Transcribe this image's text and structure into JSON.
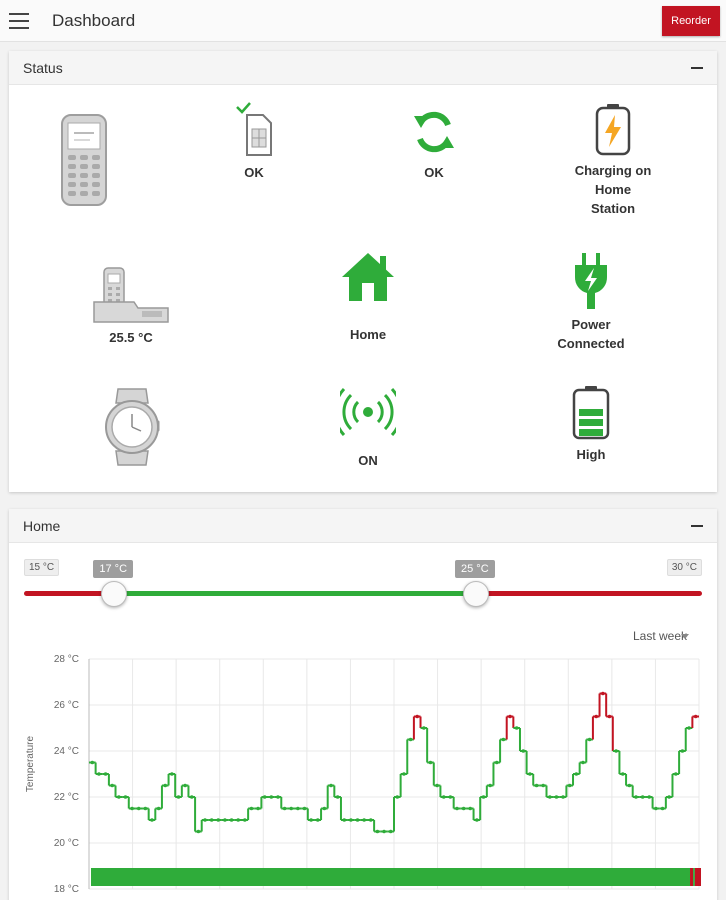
{
  "header": {
    "title": "Dashboard",
    "reorder_label": "Reorder"
  },
  "status": {
    "title": "Status",
    "sim_label": "OK",
    "sync_label": "OK",
    "charging_label": [
      "Charging on",
      "Home",
      "Station"
    ],
    "base_temp": "25.5 °C",
    "location_label": "Home",
    "power_label": [
      "Power",
      "Connected"
    ],
    "signal_label": "ON",
    "battery_label": "High",
    "battery_level": 0.8,
    "colors": {
      "green": "#2fac3a",
      "orange": "#f5a623",
      "gray": "#bdbdbd"
    }
  },
  "home": {
    "title": "Home",
    "slider": {
      "min_label": "15 °C",
      "max_label": "30 °C",
      "low_label": "17 °C",
      "high_label": "25 °C",
      "min": 15,
      "max": 30,
      "low": 17,
      "high": 25
    },
    "period": "Last week"
  },
  "chart_data": {
    "type": "line",
    "ylabel": "Temperature",
    "yticks": [
      "28 °C",
      "26 °C",
      "24 °C",
      "22 °C",
      "20 °C",
      "18 °C"
    ],
    "ylim": [
      18,
      28
    ],
    "grid": true,
    "threshold_high": 25,
    "colors": {
      "in_range": "#2fac3a",
      "above": "#c21422"
    },
    "series": [
      {
        "values": [
          23.5,
          23,
          23,
          22.5,
          22,
          22,
          21.5,
          21.5,
          21.5,
          21,
          21.5,
          22.5,
          23,
          22,
          22.5,
          22,
          20.5,
          21,
          21,
          21,
          21,
          21,
          21,
          21,
          21.5,
          21.5,
          22,
          22,
          22,
          21.5,
          21.5,
          21.5,
          21.5,
          21,
          21,
          21.5,
          22.5,
          22,
          21,
          21,
          21,
          21,
          21,
          20.5,
          20.5,
          20.5,
          22,
          23,
          24.5,
          25.5,
          25,
          23.5,
          22.5,
          22,
          22,
          21.5,
          21.5,
          21.5,
          21,
          22,
          22.5,
          23.5,
          24.5,
          25.5,
          25,
          24,
          23,
          22.5,
          22.5,
          22,
          22,
          22,
          22.5,
          23,
          23.5,
          24.5,
          25.5,
          26.5,
          25.5,
          24,
          23,
          22.5,
          22,
          22,
          22,
          21.5,
          21.5,
          22,
          23,
          24,
          25,
          25.5
        ]
      }
    ],
    "occupancy_bar": [
      {
        "state": "in_range",
        "fraction": 0.982
      },
      {
        "state": "above",
        "fraction": 0.005
      },
      {
        "state": "in_range",
        "fraction": 0.003
      },
      {
        "state": "above",
        "fraction": 0.01
      }
    ]
  }
}
